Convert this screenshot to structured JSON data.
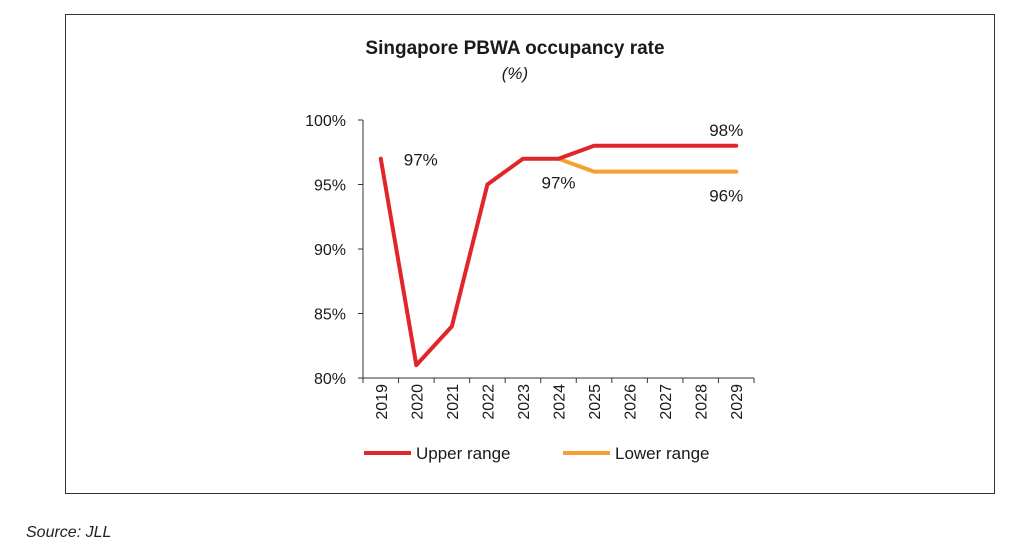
{
  "chart_data": {
    "type": "line",
    "title": "Singapore PBWA occupancy rate",
    "subtitle": "(%)",
    "xlabel": "",
    "ylabel": "",
    "categories": [
      "2019",
      "2020",
      "2021",
      "2022",
      "2023",
      "2024",
      "2025",
      "2026",
      "2027",
      "2028",
      "2029"
    ],
    "ylim": [
      80,
      100
    ],
    "yticks": [
      80,
      85,
      90,
      95,
      100
    ],
    "ytick_labels": [
      "80%",
      "85%",
      "90%",
      "95%",
      "100%"
    ],
    "grid": false,
    "legend_position": "bottom",
    "series": [
      {
        "name": "Upper range",
        "color": "#e0262b",
        "values": [
          97,
          81,
          84,
          95,
          97,
          97,
          98,
          98,
          98,
          98,
          98
        ]
      },
      {
        "name": "Lower range",
        "color": "#f5a033",
        "values": [
          null,
          null,
          null,
          null,
          null,
          97,
          96,
          96,
          96,
          96,
          96
        ]
      }
    ],
    "annotations": [
      {
        "text": "97%",
        "x": "2019",
        "y": 97,
        "pos": "right"
      },
      {
        "text": "97%",
        "x": "2024",
        "y": 97,
        "pos": "below"
      },
      {
        "text": "98%",
        "x": "2029",
        "y": 98,
        "pos": "above"
      },
      {
        "text": "96%",
        "x": "2029",
        "y": 96,
        "pos": "below"
      }
    ]
  },
  "source": "Source: JLL"
}
